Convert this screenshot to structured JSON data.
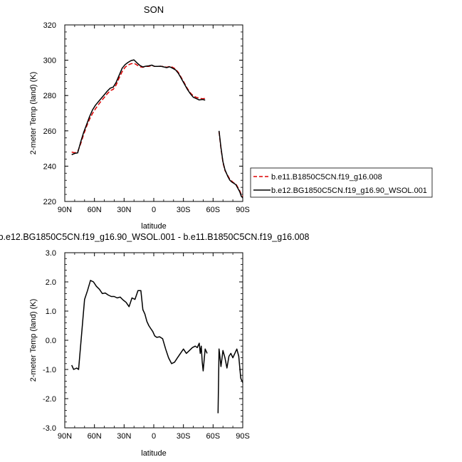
{
  "chart_data": [
    {
      "type": "line",
      "title": "SON",
      "xlabel": "latitude",
      "ylabel": "2-meter Temp (land) (K)",
      "x_reversed": true,
      "xlim": [
        90,
        -90
      ],
      "ylim": [
        220,
        320
      ],
      "x_ticks": [
        90,
        60,
        30,
        0,
        -30,
        -60,
        -90
      ],
      "x_tick_labels": [
        "90N",
        "60N",
        "30N",
        "0",
        "30S",
        "60S",
        "90S"
      ],
      "y_ticks": [
        220,
        240,
        260,
        280,
        300,
        320
      ],
      "y_tick_labels": [
        "220",
        "240",
        "260",
        "280",
        "300",
        "320"
      ],
      "legend": {
        "placement": "right",
        "entries": [
          {
            "name": "b.e11.B1850C5CN.f19_g16.008",
            "color": "#dd0000",
            "dash": true
          },
          {
            "name": "b.e12.BG1850C5CN.f19_g16.90_WSOL.001",
            "color": "#000000",
            "dash": false
          }
        ]
      },
      "series": [
        {
          "name": "b.e11.B1850C5CN.f19_g16.008",
          "color": "#dd0000",
          "dash": true,
          "segments": [
            [
              [
                83,
                248.0
              ],
              [
                80,
                247.6
              ],
              [
                77,
                248.2
              ],
              [
                74,
                252.5
              ],
              [
                71,
                257.8
              ],
              [
                68,
                262.5
              ],
              [
                65,
                266.5
              ],
              [
                62,
                269.8
              ],
              [
                59,
                272.5
              ],
              [
                56,
                274.8
              ],
              [
                53,
                277.0
              ],
              [
                50,
                279.0
              ],
              [
                47,
                281.0
              ],
              [
                44,
                282.8
              ],
              [
                41,
                283.5
              ],
              [
                38,
                286.0
              ],
              [
                35,
                290.0
              ],
              [
                32,
                293.5
              ],
              [
                29,
                296.0
              ],
              [
                26,
                297.3
              ],
              [
                23,
                298.0
              ],
              [
                20,
                298.3
              ],
              [
                17,
                297.3
              ],
              [
                14,
                296.3
              ],
              [
                11,
                296.0
              ],
              [
                8,
                296.5
              ],
              [
                5,
                296.5
              ],
              [
                2,
                297.0
              ],
              [
                -1,
                296.5
              ],
              [
                -4,
                296.5
              ],
              [
                -7,
                296.5
              ],
              [
                -10,
                296.5
              ],
              [
                -13,
                296.0
              ],
              [
                -16,
                296.5
              ],
              [
                -19,
                296.0
              ],
              [
                -22,
                295.0
              ],
              [
                -25,
                293.0
              ],
              [
                -28,
                290.0
              ],
              [
                -31,
                287.0
              ],
              [
                -34,
                284.0
              ],
              [
                -37,
                281.5
              ],
              [
                -40,
                279.8
              ],
              [
                -43,
                279.0
              ],
              [
                -46,
                278.5
              ],
              [
                -49,
                278.2
              ],
              [
                -52,
                278.3
              ]
            ],
            [
              [
                -66,
                259.5
              ],
              [
                -68,
                250.0
              ],
              [
                -70,
                242.0
              ],
              [
                -72,
                237.5
              ],
              [
                -75,
                234.5
              ],
              [
                -77,
                232.5
              ],
              [
                -79,
                231.5
              ],
              [
                -81,
                230.5
              ],
              [
                -83,
                230.0
              ],
              [
                -85,
                228.0
              ],
              [
                -87,
                226.0
              ],
              [
                -88.5,
                224.0
              ],
              [
                -90,
                223.0
              ]
            ]
          ]
        },
        {
          "name": "b.e12.BG1850C5CN.f19_g16.90_WSOL.001",
          "color": "#000000",
          "dash": false,
          "segments": [
            [
              [
                83,
                246.5
              ],
              [
                80,
                247.2
              ],
              [
                77,
                247.5
              ],
              [
                74,
                253.5
              ],
              [
                71,
                259.0
              ],
              [
                68,
                263.5
              ],
              [
                65,
                268.0
              ],
              [
                62,
                271.8
              ],
              [
                59,
                274.5
              ],
              [
                56,
                276.5
              ],
              [
                53,
                278.5
              ],
              [
                50,
                280.5
              ],
              [
                47,
                282.5
              ],
              [
                44,
                284.2
              ],
              [
                41,
                284.8
              ],
              [
                38,
                287.5
              ],
              [
                35,
                291.5
              ],
              [
                32,
                295.5
              ],
              [
                29,
                297.5
              ],
              [
                26,
                298.8
              ],
              [
                23,
                299.8
              ],
              [
                20,
                300.2
              ],
              [
                17,
                298.5
              ],
              [
                14,
                297.0
              ],
              [
                11,
                296.2
              ],
              [
                8,
                296.6
              ],
              [
                5,
                296.8
              ],
              [
                2,
                297.2
              ],
              [
                -1,
                296.5
              ],
              [
                -4,
                296.5
              ],
              [
                -7,
                296.6
              ],
              [
                -10,
                296.2
              ],
              [
                -13,
                295.8
              ],
              [
                -16,
                296.3
              ],
              [
                -19,
                295.5
              ],
              [
                -22,
                294.5
              ],
              [
                -25,
                292.5
              ],
              [
                -28,
                289.5
              ],
              [
                -31,
                286.5
              ],
              [
                -34,
                283.5
              ],
              [
                -37,
                281.0
              ],
              [
                -40,
                279.0
              ],
              [
                -43,
                278.3
              ],
              [
                -46,
                277.5
              ],
              [
                -49,
                277.8
              ],
              [
                -52,
                277.4
              ]
            ],
            [
              [
                -66,
                260.0
              ],
              [
                -68,
                250.5
              ],
              [
                -70,
                242.5
              ],
              [
                -72,
                238.0
              ],
              [
                -75,
                234.0
              ],
              [
                -77,
                232.0
              ],
              [
                -79,
                231.0
              ],
              [
                -81,
                230.3
              ],
              [
                -83,
                229.5
              ],
              [
                -85,
                227.5
              ],
              [
                -87,
                225.5
              ],
              [
                -88.5,
                223.0
              ],
              [
                -90,
                222.0
              ]
            ]
          ]
        }
      ]
    },
    {
      "type": "line",
      "title": "b.e12.BG1850C5CN.f19_g16.90_WSOL.001 - b.e11.B1850C5CN.f19_g16.008",
      "xlabel": "latitude",
      "ylabel": "2-meter Temp (land) (K)",
      "x_reversed": true,
      "xlim": [
        90,
        -90
      ],
      "ylim": [
        -3.0,
        3.0
      ],
      "x_ticks": [
        90,
        60,
        30,
        0,
        -30,
        -60,
        -90
      ],
      "x_tick_labels": [
        "90N",
        "60N",
        "30N",
        "0",
        "30S",
        "60S",
        "90S"
      ],
      "y_ticks": [
        -3,
        -2,
        -1,
        0,
        1,
        2,
        3
      ],
      "y_tick_labels": [
        "-3.0",
        "-2.0",
        "-1.0",
        "0.0",
        "1.0",
        "2.0",
        "3.0"
      ],
      "series": [
        {
          "name": "",
          "color": "#000000",
          "dash": false,
          "segments": [
            [
              [
                83,
                -0.85
              ],
              [
                81,
                -1.0
              ],
              [
                78,
                -0.95
              ],
              [
                76,
                -1.0
              ],
              [
                73,
                0.2
              ],
              [
                70,
                1.4
              ],
              [
                67,
                1.7
              ],
              [
                64,
                2.05
              ],
              [
                61,
                2.0
              ],
              [
                58,
                1.85
              ],
              [
                55,
                1.75
              ],
              [
                52,
                1.6
              ],
              [
                49,
                1.62
              ],
              [
                46,
                1.55
              ],
              [
                43,
                1.5
              ],
              [
                40,
                1.5
              ],
              [
                37,
                1.45
              ],
              [
                34,
                1.48
              ],
              [
                31,
                1.38
              ],
              [
                28,
                1.3
              ],
              [
                25,
                1.15
              ],
              [
                22,
                1.45
              ],
              [
                19,
                1.4
              ],
              [
                16,
                1.7
              ],
              [
                13,
                1.7
              ],
              [
                11,
                1.05
              ],
              [
                9,
                0.9
              ],
              [
                7,
                0.65
              ],
              [
                5,
                0.5
              ],
              [
                3,
                0.4
              ],
              [
                1,
                0.3
              ],
              [
                -1,
                0.15
              ],
              [
                -3,
                0.1
              ],
              [
                -6,
                0.12
              ],
              [
                -9,
                0.05
              ],
              [
                -12,
                -0.3
              ],
              [
                -15,
                -0.6
              ],
              [
                -18,
                -0.8
              ],
              [
                -21,
                -0.75
              ],
              [
                -24,
                -0.6
              ],
              [
                -27,
                -0.45
              ],
              [
                -30,
                -0.3
              ],
              [
                -33,
                -0.45
              ],
              [
                -36,
                -0.35
              ],
              [
                -39,
                -0.25
              ],
              [
                -42,
                -0.2
              ],
              [
                -44,
                -0.25
              ],
              [
                -46,
                -0.1
              ],
              [
                -47,
                -0.45
              ],
              [
                -48,
                -0.2
              ],
              [
                -49,
                -0.75
              ],
              [
                -50,
                -1.05
              ],
              [
                -52,
                -0.3
              ],
              [
                -54,
                -0.45
              ]
            ],
            [
              [
                -65,
                -2.5
              ],
              [
                -66,
                -0.3
              ],
              [
                -67,
                -0.6
              ],
              [
                -68,
                -0.9
              ],
              [
                -70,
                -0.35
              ],
              [
                -72,
                -0.6
              ],
              [
                -74,
                -0.95
              ],
              [
                -76,
                -0.55
              ],
              [
                -78,
                -0.45
              ],
              [
                -80,
                -0.6
              ],
              [
                -82,
                -0.45
              ],
              [
                -84,
                -0.3
              ],
              [
                -86,
                -0.55
              ],
              [
                -88,
                -1.3
              ],
              [
                -90,
                -1.45
              ]
            ]
          ]
        }
      ]
    }
  ]
}
